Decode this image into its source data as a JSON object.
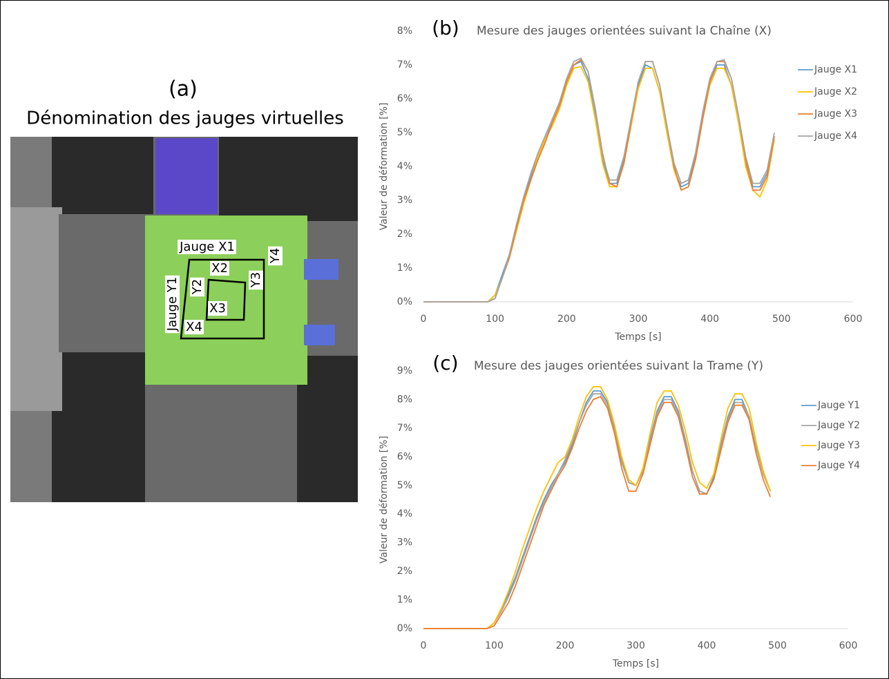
{
  "panel_a": {
    "label": "(a)",
    "title": "Dénomination des jauges virtuelles",
    "gauge_labels": [
      "Jauge X1",
      "X2",
      "X3",
      "X4",
      "Jauge Y1",
      "Y2",
      "Y3",
      "Y4"
    ]
  },
  "chart_data": [
    {
      "type": "line",
      "panel_label": "(b)",
      "title": "Mesure des jauges orientées suivant la Chaîne (X)",
      "x_label": "Temps [s]",
      "y_label": "Valeur de déformation [%]",
      "xlim": [
        0,
        600
      ],
      "xticks": [
        0,
        100,
        200,
        300,
        400,
        500,
        600
      ],
      "ylim": [
        0,
        8
      ],
      "yticks": [
        {
          "value": 0,
          "label": "0%"
        },
        {
          "value": 1,
          "label": "1%"
        },
        {
          "value": 2,
          "label": "2%"
        },
        {
          "value": 3,
          "label": "3%"
        },
        {
          "value": 4,
          "label": "4%"
        },
        {
          "value": 5,
          "label": "5%"
        },
        {
          "value": 6,
          "label": "6%"
        },
        {
          "value": 7,
          "label": "7%"
        },
        {
          "value": 8,
          "label": "8%"
        }
      ],
      "grid": false,
      "x": [
        0,
        80,
        90,
        100,
        110,
        120,
        130,
        140,
        150,
        160,
        170,
        180,
        190,
        200,
        210,
        220,
        230,
        240,
        250,
        260,
        270,
        280,
        290,
        300,
        310,
        320,
        330,
        340,
        350,
        360,
        370,
        380,
        390,
        400,
        410,
        420,
        430,
        440,
        450,
        460,
        470,
        480,
        490
      ],
      "series": [
        {
          "name": "Jauge X1",
          "color": "#5b9bd5",
          "values": [
            0,
            0,
            0,
            0.2,
            0.8,
            1.4,
            2.2,
            3.0,
            3.7,
            4.3,
            4.8,
            5.3,
            5.8,
            6.5,
            7.0,
            7.1,
            6.6,
            5.5,
            4.2,
            3.5,
            3.5,
            4.2,
            5.3,
            6.4,
            7.0,
            6.9,
            6.2,
            5.0,
            3.9,
            3.4,
            3.5,
            4.3,
            5.5,
            6.5,
            7.0,
            7.0,
            6.4,
            5.3,
            4.1,
            3.4,
            3.4,
            3.8,
            4.9
          ]
        },
        {
          "name": "Jauge X2",
          "color": "#ffc000",
          "values": [
            0,
            0,
            0,
            0.2,
            0.7,
            1.3,
            2.1,
            2.9,
            3.6,
            4.3,
            4.8,
            5.2,
            5.7,
            6.4,
            6.9,
            6.95,
            6.5,
            5.4,
            4.1,
            3.4,
            3.4,
            4.1,
            5.2,
            6.3,
            6.9,
            6.9,
            6.2,
            5.0,
            3.9,
            3.3,
            3.4,
            4.2,
            5.4,
            6.4,
            6.9,
            6.9,
            6.4,
            5.3,
            4.0,
            3.3,
            3.1,
            3.6,
            4.8
          ]
        },
        {
          "name": "Jauge X3",
          "color": "#ed7d31",
          "values": [
            0,
            0,
            0,
            0.1,
            0.7,
            1.3,
            2.2,
            3.0,
            3.6,
            4.2,
            4.7,
            5.3,
            5.8,
            6.5,
            7.0,
            7.15,
            6.8,
            5.7,
            4.4,
            3.5,
            3.4,
            4.1,
            5.3,
            6.5,
            7.1,
            7.1,
            6.4,
            5.2,
            4.0,
            3.3,
            3.4,
            4.2,
            5.4,
            6.5,
            7.1,
            7.1,
            6.6,
            5.5,
            4.2,
            3.3,
            3.3,
            3.7,
            4.9
          ]
        },
        {
          "name": "Jauge X4",
          "color": "#a5a5a5",
          "values": [
            0,
            0,
            0,
            0.1,
            0.7,
            1.4,
            2.3,
            3.1,
            3.8,
            4.4,
            4.9,
            5.4,
            5.9,
            6.6,
            7.1,
            7.2,
            6.8,
            5.7,
            4.3,
            3.6,
            3.6,
            4.3,
            5.4,
            6.5,
            7.1,
            7.1,
            6.4,
            5.2,
            4.1,
            3.5,
            3.6,
            4.4,
            5.6,
            6.6,
            7.1,
            7.15,
            6.6,
            5.5,
            4.3,
            3.5,
            3.5,
            3.9,
            5.0
          ]
        }
      ],
      "legend": "right"
    },
    {
      "type": "line",
      "panel_label": "(c)",
      "title": "Mesure des jauges orientées suivant la Trame (Y)",
      "x_label": "Temps [s]",
      "y_label": "Valeur de déformation [%]",
      "xlim": [
        0,
        600
      ],
      "xticks": [
        0,
        100,
        200,
        300,
        400,
        500,
        600
      ],
      "ylim": [
        0,
        9
      ],
      "yticks": [
        {
          "value": 0,
          "label": "0%"
        },
        {
          "value": 1,
          "label": "1%"
        },
        {
          "value": 2,
          "label": "2%"
        },
        {
          "value": 3,
          "label": "3%"
        },
        {
          "value": 4,
          "label": "4%"
        },
        {
          "value": 5,
          "label": "5%"
        },
        {
          "value": 6,
          "label": "6%"
        },
        {
          "value": 7,
          "label": "7%"
        },
        {
          "value": 8,
          "label": "8%"
        },
        {
          "value": 9,
          "label": "9%"
        }
      ],
      "grid": false,
      "x": [
        0,
        80,
        90,
        100,
        110,
        120,
        130,
        140,
        150,
        160,
        170,
        180,
        190,
        200,
        210,
        220,
        230,
        240,
        250,
        260,
        270,
        280,
        290,
        300,
        310,
        320,
        330,
        340,
        350,
        360,
        370,
        380,
        390,
        400,
        410,
        420,
        430,
        440,
        450,
        460,
        470,
        480,
        490
      ],
      "series": [
        {
          "name": "Jauge Y1",
          "color": "#5b9bd5",
          "values": [
            0,
            0,
            0,
            0.2,
            0.7,
            1.2,
            1.8,
            2.5,
            3.2,
            3.9,
            4.5,
            5.0,
            5.4,
            5.8,
            6.4,
            7.2,
            7.9,
            8.3,
            8.3,
            7.9,
            7.0,
            5.9,
            5.1,
            5.0,
            5.5,
            6.6,
            7.6,
            8.1,
            8.1,
            7.6,
            6.6,
            5.5,
            4.8,
            4.7,
            5.3,
            6.4,
            7.4,
            8.0,
            8.0,
            7.4,
            6.3,
            5.4,
            4.8
          ]
        },
        {
          "name": "Jauge Y2",
          "color": "#a5a5a5",
          "values": [
            0,
            0,
            0,
            0.2,
            0.6,
            1.1,
            1.7,
            2.4,
            3.1,
            3.8,
            4.4,
            4.9,
            5.4,
            5.9,
            6.5,
            7.2,
            7.8,
            8.2,
            8.2,
            7.8,
            6.9,
            5.8,
            5.1,
            5.0,
            5.5,
            6.5,
            7.5,
            8.0,
            8.0,
            7.5,
            6.5,
            5.5,
            4.8,
            4.7,
            5.2,
            6.3,
            7.3,
            7.9,
            7.9,
            7.4,
            6.3,
            5.4,
            4.8
          ]
        },
        {
          "name": "Jauge Y3",
          "color": "#ffc000",
          "values": [
            0,
            0,
            0,
            0.2,
            0.7,
            1.3,
            2.0,
            2.8,
            3.5,
            4.2,
            4.8,
            5.3,
            5.8,
            6.0,
            6.6,
            7.4,
            8.1,
            8.45,
            8.45,
            8.0,
            7.1,
            6.0,
            5.2,
            5.0,
            5.6,
            6.8,
            7.9,
            8.3,
            8.3,
            7.8,
            6.9,
            5.8,
            5.1,
            4.9,
            5.4,
            6.6,
            7.7,
            8.2,
            8.2,
            7.7,
            6.5,
            5.5,
            4.8
          ]
        },
        {
          "name": "Jauge Y4",
          "color": "#ed7d31",
          "values": [
            0,
            0,
            0,
            0.1,
            0.5,
            0.9,
            1.5,
            2.2,
            2.9,
            3.6,
            4.3,
            4.8,
            5.3,
            5.7,
            6.3,
            7.0,
            7.6,
            8.0,
            8.1,
            7.7,
            6.8,
            5.6,
            4.8,
            4.8,
            5.4,
            6.4,
            7.4,
            7.9,
            7.9,
            7.4,
            6.4,
            5.3,
            4.7,
            4.7,
            5.2,
            6.2,
            7.2,
            7.8,
            7.8,
            7.3,
            6.1,
            5.2,
            4.6
          ]
        }
      ],
      "legend": "right"
    }
  ]
}
